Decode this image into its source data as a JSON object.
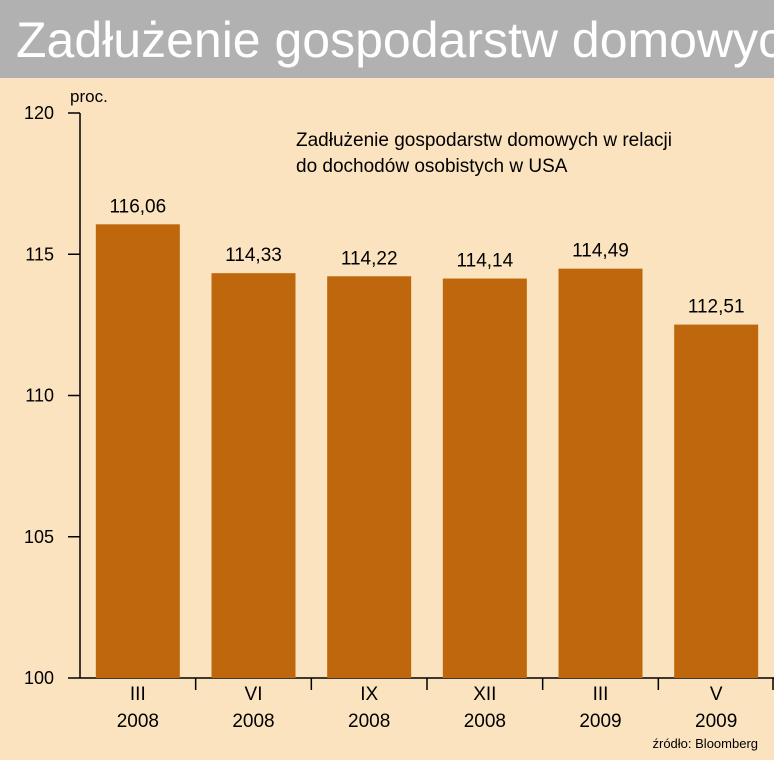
{
  "header": {
    "title": "Zadłużenie gospodarstw domowych"
  },
  "source": "źródło: Bloomberg",
  "chart_data": {
    "type": "bar",
    "title": "Zadłużenie gospodarstw domowych w relacji do dochodów osobistych w USA",
    "subtitle_lines": [
      "Zadłużenie gospodarstw domowych w relacji",
      "do dochodów osobistych w USA"
    ],
    "ylabel": "proc.",
    "xlabel": "",
    "ylim": [
      100,
      120
    ],
    "yticks": [
      100,
      105,
      110,
      115,
      120
    ],
    "categories": [
      [
        "III",
        "2008"
      ],
      [
        "VI",
        "2008"
      ],
      [
        "IX",
        "2008"
      ],
      [
        "XII",
        "2008"
      ],
      [
        "III",
        "2009"
      ],
      [
        "V",
        "2009"
      ]
    ],
    "values": [
      116.06,
      114.33,
      114.22,
      114.14,
      114.49,
      112.51
    ],
    "value_labels": [
      "116,06",
      "114,33",
      "114,22",
      "114,14",
      "114,49",
      "112,51"
    ],
    "bar_color": "#bf670c",
    "grid": false
  }
}
